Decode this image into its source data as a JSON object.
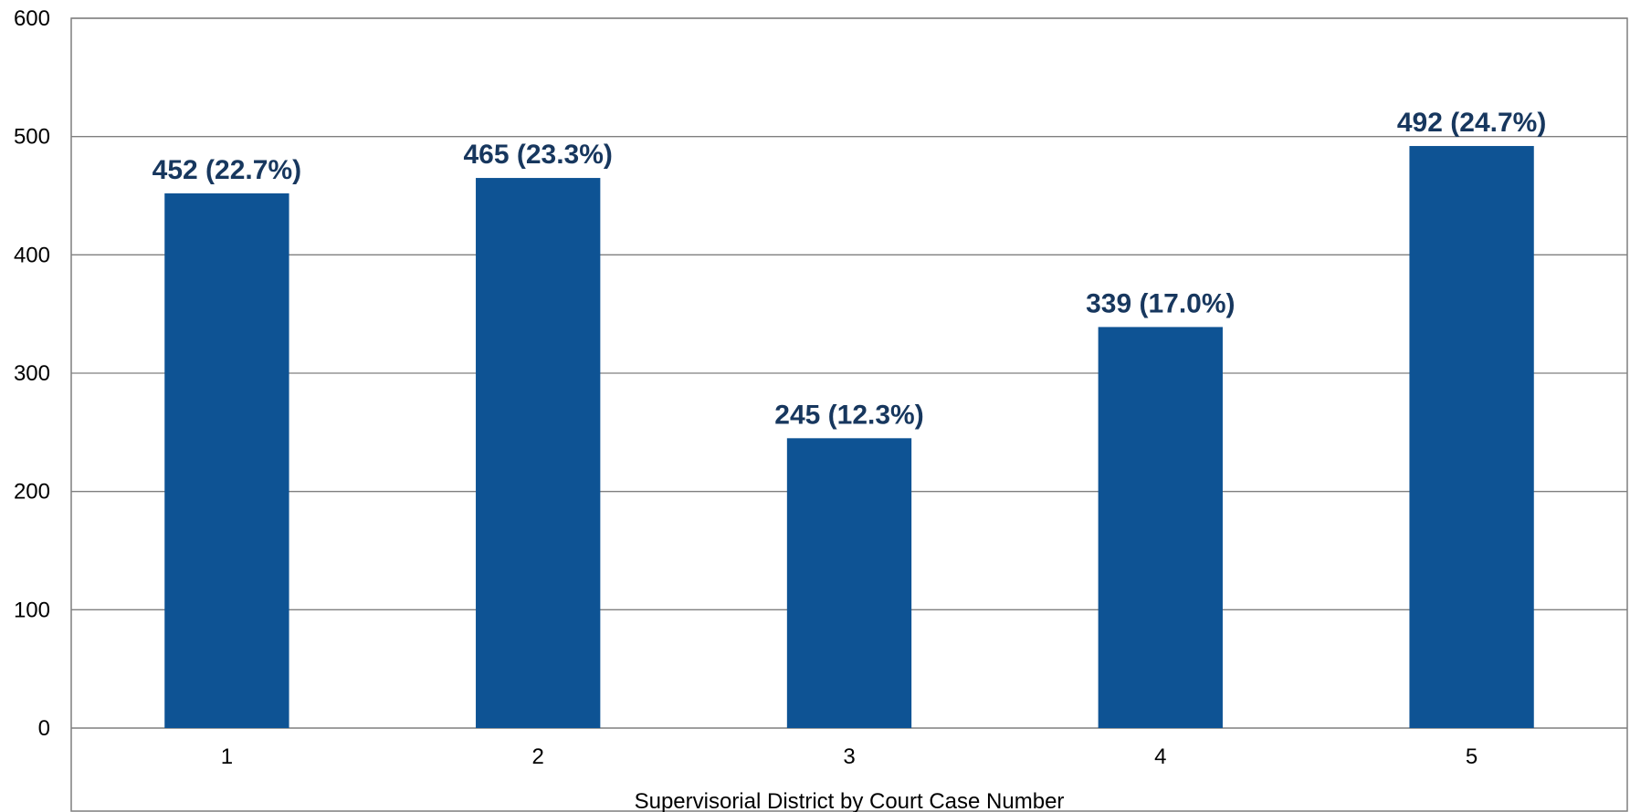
{
  "chart_data": {
    "type": "bar",
    "categories": [
      "1",
      "2",
      "3",
      "4",
      "5"
    ],
    "values": [
      452,
      465,
      245,
      339,
      492
    ],
    "data_labels": [
      "452 (22.7%)",
      "465 (23.3%)",
      "245 (12.3%)",
      "339 (17.0%)",
      "492 (24.7%)"
    ],
    "xlabel": "Supervisorial District by Court Case Number",
    "ylabel": "",
    "ylim": [
      0,
      600
    ],
    "yticks": [
      "0",
      "100",
      "200",
      "300",
      "400",
      "500",
      "600"
    ],
    "grid": true,
    "legend": "none",
    "bar_color": "#0e5394",
    "label_color": "#17375e",
    "grid_color": "#7f7f7f"
  }
}
